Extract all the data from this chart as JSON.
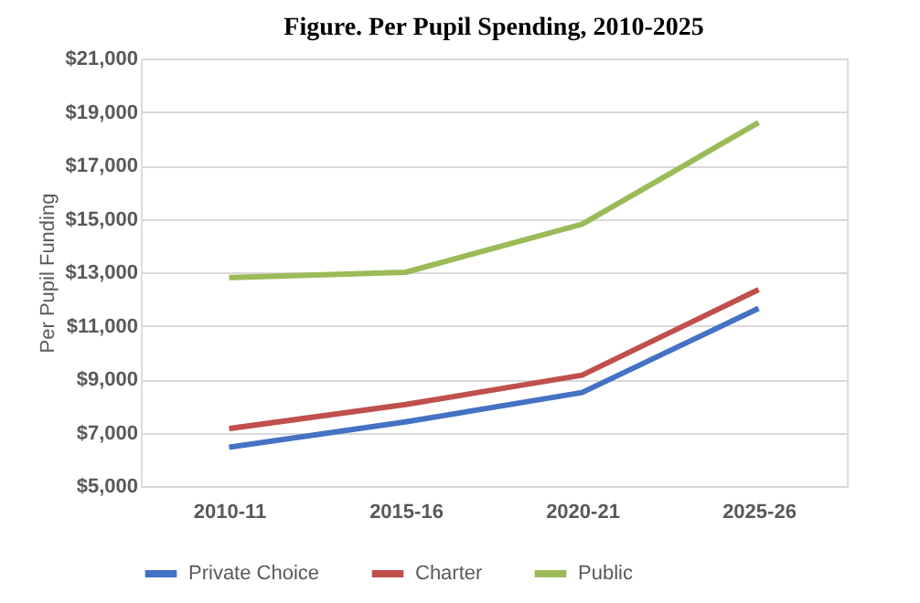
{
  "chart_data": {
    "type": "line",
    "title": "Figure.  Per Pupil Spending, 2010-2025",
    "ylabel": "Per Pupil Funding",
    "categories": [
      "2010-11",
      "2015-16",
      "2020-21",
      "2025-26"
    ],
    "series": [
      {
        "name": "Private Choice",
        "color": "#4472c4",
        "values": [
          6450,
          7400,
          8500,
          11650
        ]
      },
      {
        "name": "Charter",
        "color": "#c0504d",
        "values": [
          7150,
          8050,
          9150,
          12350
        ]
      },
      {
        "name": "Public",
        "color": "#9bbb59",
        "values": [
          12800,
          13000,
          14800,
          18600
        ]
      }
    ],
    "ylim": [
      5000,
      21000
    ],
    "yticks": [
      {
        "value": 5000,
        "label": "$5,000"
      },
      {
        "value": 7000,
        "label": "$7,000"
      },
      {
        "value": 9000,
        "label": "$9,000"
      },
      {
        "value": 11000,
        "label": "$11,000"
      },
      {
        "value": 13000,
        "label": "$13,000"
      },
      {
        "value": 15000,
        "label": "$15,000"
      },
      {
        "value": 17000,
        "label": "$17,000"
      },
      {
        "value": 19000,
        "label": "$19,000"
      },
      {
        "value": 21000,
        "label": "$21,000"
      }
    ],
    "grid": "y",
    "legend": "bottom",
    "marker": "none",
    "line_style": "solid"
  }
}
